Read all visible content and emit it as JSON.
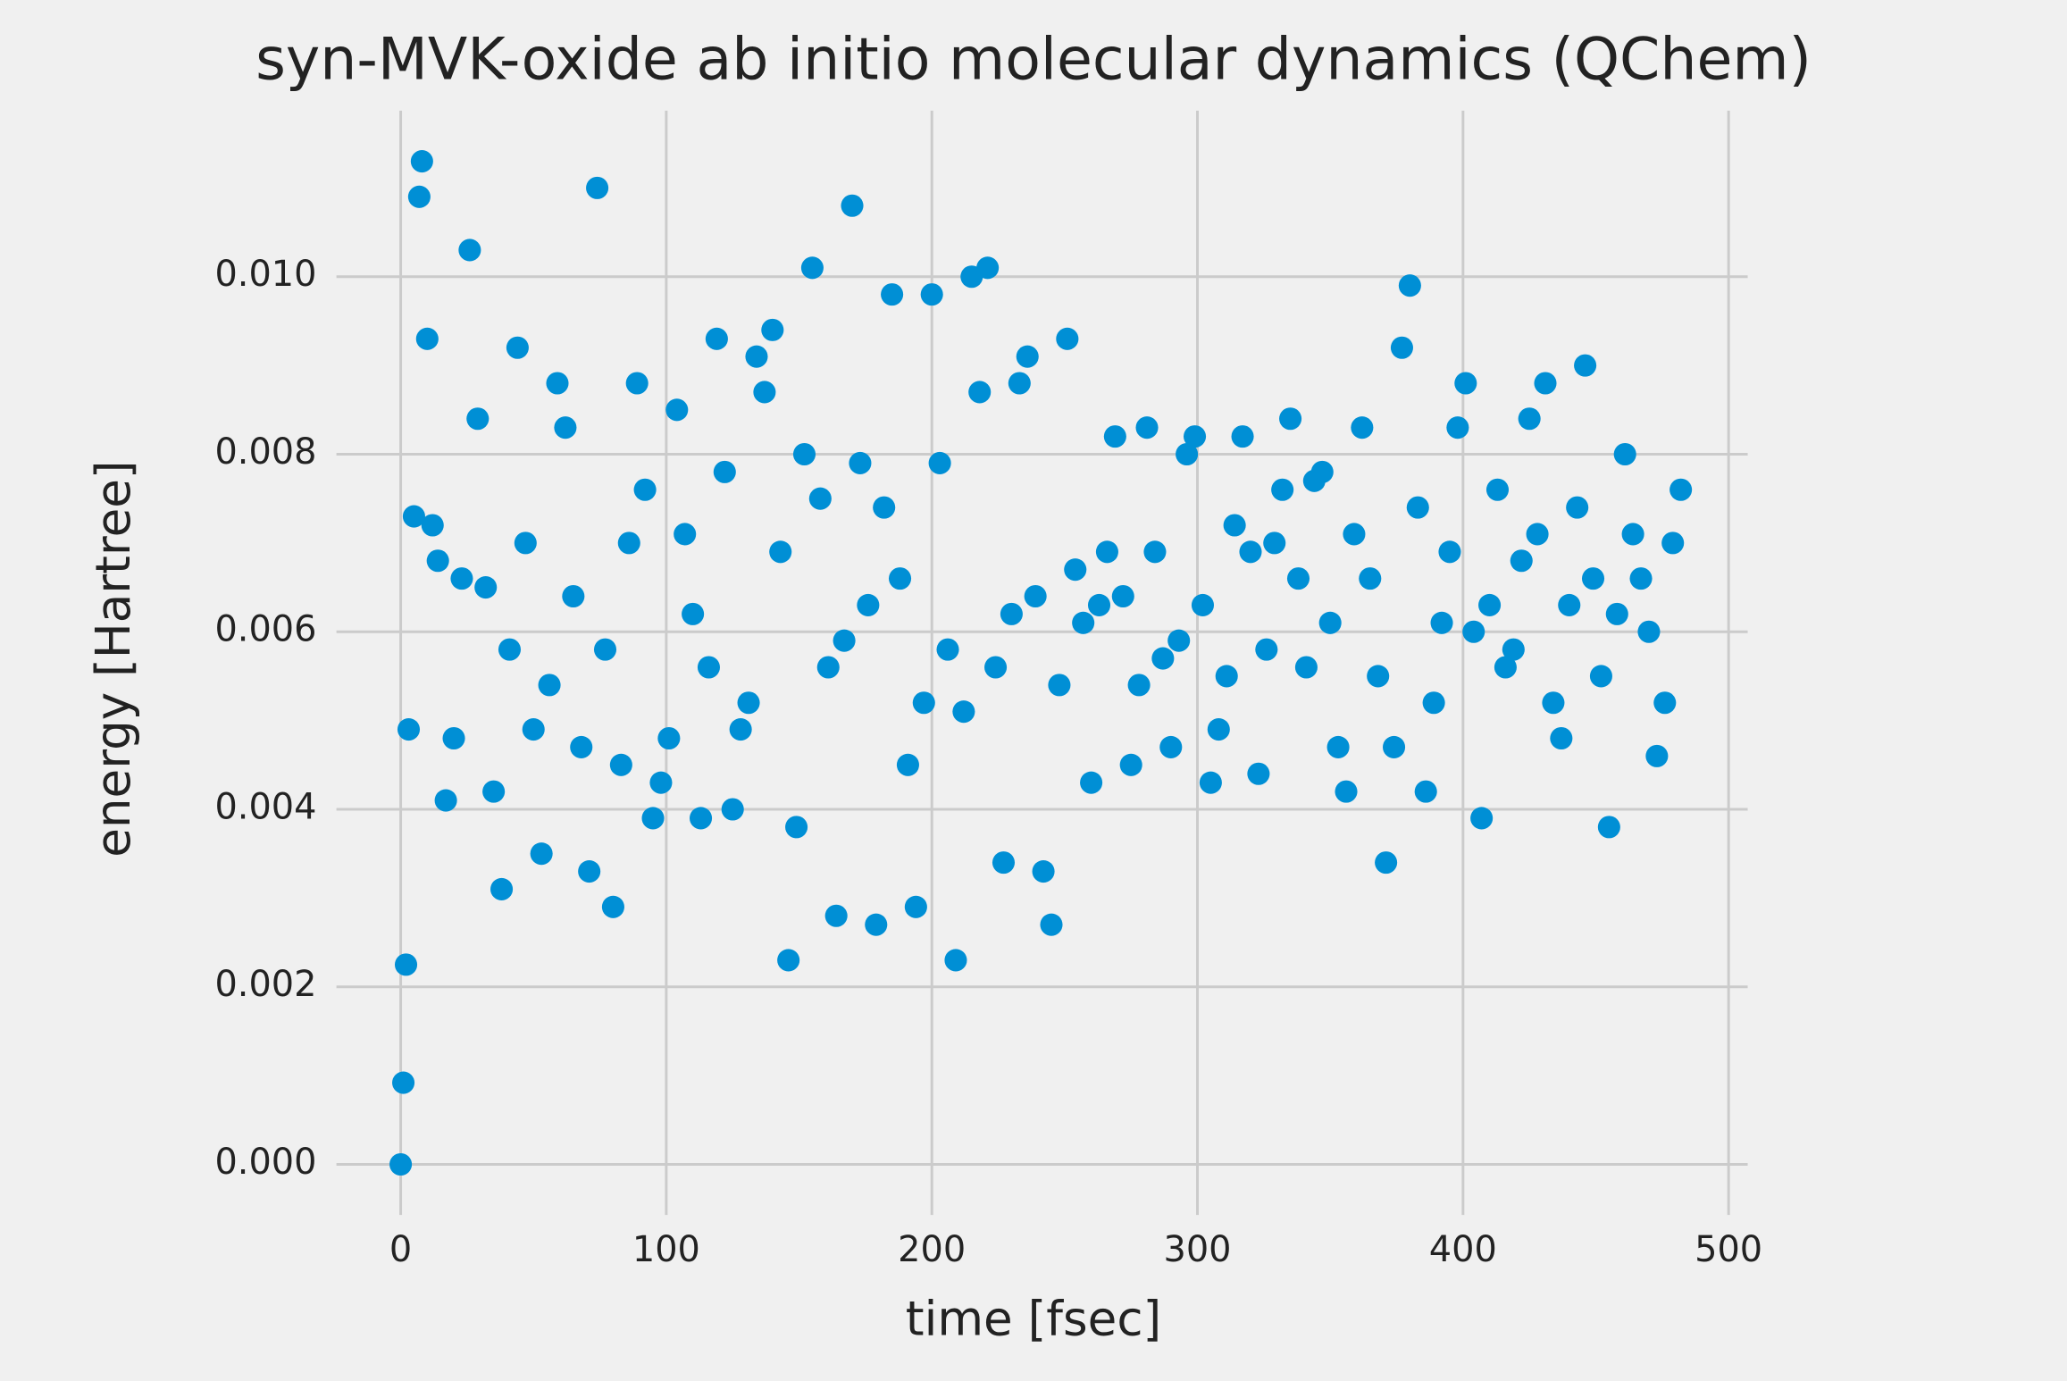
{
  "chart_data": {
    "type": "scatter",
    "title": "syn-MVK-oxide ab initio molecular dynamics (QChem)",
    "x_label": "time [fsec]",
    "y_label": "energy [Hartree]",
    "color": "#008fd5",
    "grid": true,
    "xlim": [
      -24.2,
      507.2
    ],
    "ylim": [
      -0.00057,
      0.01187
    ],
    "xticks": [
      0,
      100,
      200,
      300,
      400,
      500
    ],
    "yticks": [
      {
        "value": 0,
        "label": "0.000"
      },
      {
        "value": 0.002,
        "label": "0.002"
      },
      {
        "value": 0.004,
        "label": "0.004"
      },
      {
        "value": 0.006,
        "label": "0.006"
      },
      {
        "value": 0.008,
        "label": "0.008"
      },
      {
        "value": 0.01,
        "label": "0.010"
      }
    ],
    "x": [
      0,
      1,
      2,
      3,
      5,
      7,
      8,
      10,
      12,
      14,
      17,
      20,
      23,
      26,
      29,
      32,
      35,
      38,
      41,
      44,
      47,
      50,
      53,
      56,
      59,
      62,
      65,
      68,
      71,
      74,
      77,
      80,
      83,
      86,
      89,
      92,
      95,
      98,
      101,
      104,
      107,
      110,
      113,
      116,
      119,
      122,
      125,
      128,
      131,
      134,
      137,
      140,
      143,
      146,
      149,
      152,
      155,
      158,
      161,
      164,
      167,
      170,
      173,
      176,
      179,
      182,
      185,
      188,
      191,
      194,
      197,
      200,
      203,
      206,
      209,
      212,
      215,
      218,
      221,
      224,
      227,
      230,
      233,
      236,
      239,
      242,
      245,
      248,
      251,
      254,
      257,
      260,
      263,
      266,
      269,
      272,
      275,
      278,
      281,
      284,
      287,
      290,
      293,
      296,
      299,
      302,
      305,
      308,
      311,
      314,
      317,
      320,
      323,
      326,
      329,
      332,
      335,
      338,
      341,
      344,
      347,
      350,
      353,
      356,
      359,
      362,
      365,
      368,
      371,
      374,
      377,
      380,
      383,
      386,
      389,
      392,
      395,
      398,
      401,
      404,
      407,
      410,
      413,
      416,
      419,
      422,
      425,
      428,
      431,
      434,
      437,
      440,
      443,
      446,
      449,
      452,
      455,
      458,
      461,
      464,
      467,
      470,
      473,
      476,
      479,
      482
    ],
    "values": [
      0.0,
      0.00092,
      0.00225,
      0.0049,
      0.0073,
      0.0109,
      0.0113,
      0.0093,
      0.0072,
      0.0068,
      0.0041,
      0.0048,
      0.0066,
      0.0103,
      0.0084,
      0.0065,
      0.0042,
      0.0031,
      0.0058,
      0.0092,
      0.007,
      0.0049,
      0.0035,
      0.0054,
      0.0088,
      0.0083,
      0.0064,
      0.0047,
      0.0033,
      0.011,
      0.0058,
      0.0029,
      0.0045,
      0.007,
      0.0088,
      0.0076,
      0.0039,
      0.0043,
      0.0048,
      0.0085,
      0.0071,
      0.0062,
      0.0039,
      0.0056,
      0.0093,
      0.0078,
      0.004,
      0.0049,
      0.0052,
      0.0091,
      0.0087,
      0.0094,
      0.0069,
      0.0023,
      0.0038,
      0.008,
      0.0101,
      0.0075,
      0.0056,
      0.0028,
      0.0059,
      0.0108,
      0.0079,
      0.0063,
      0.0027,
      0.0074,
      0.0098,
      0.0066,
      0.0045,
      0.0029,
      0.0052,
      0.0098,
      0.0079,
      0.0058,
      0.0023,
      0.0051,
      0.01,
      0.0087,
      0.0101,
      0.0056,
      0.0034,
      0.0062,
      0.0088,
      0.0091,
      0.0064,
      0.0033,
      0.0027,
      0.0054,
      0.0093,
      0.0067,
      0.0061,
      0.0043,
      0.0063,
      0.0069,
      0.0082,
      0.0064,
      0.0045,
      0.0054,
      0.0083,
      0.0069,
      0.0057,
      0.0047,
      0.0059,
      0.008,
      0.0082,
      0.0063,
      0.0043,
      0.0049,
      0.0055,
      0.0072,
      0.0082,
      0.0069,
      0.0044,
      0.0058,
      0.007,
      0.0076,
      0.0084,
      0.0066,
      0.0056,
      0.0077,
      0.0078,
      0.0061,
      0.0047,
      0.0042,
      0.0071,
      0.0083,
      0.0066,
      0.0055,
      0.0034,
      0.0047,
      0.0092,
      0.0099,
      0.0074,
      0.0042,
      0.0052,
      0.0061,
      0.0069,
      0.0083,
      0.0088,
      0.006,
      0.0039,
      0.0063,
      0.0076,
      0.0056,
      0.0058,
      0.0068,
      0.0084,
      0.0071,
      0.0088,
      0.0052,
      0.0048,
      0.0063,
      0.0074,
      0.009,
      0.0066,
      0.0055,
      0.0038,
      0.0062,
      0.008,
      0.0071,
      0.0066,
      0.006,
      0.0046,
      0.0052,
      0.007,
      0.0076
    ]
  }
}
